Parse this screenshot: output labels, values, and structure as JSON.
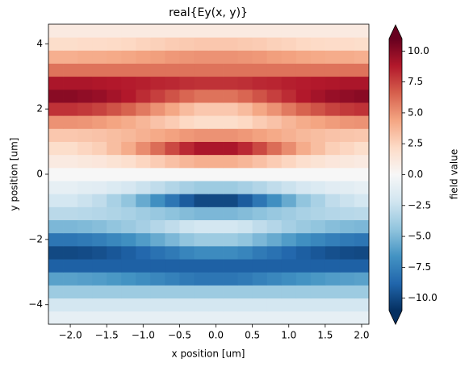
{
  "chart_data": {
    "type": "heatmap",
    "title": "real{Ey(x, y)}",
    "xlabel": "x position [um]",
    "ylabel": "y position [um]",
    "colorbar_label": "field value",
    "colormap": [
      "#053061",
      "#2166ac",
      "#4393c3",
      "#92c5de",
      "#d1e5f0",
      "#f7f7f7",
      "#fddbc7",
      "#f4a582",
      "#d6604d",
      "#b2182b",
      "#67001f"
    ],
    "clim": [
      -11,
      11
    ],
    "xlim": [
      -2.3,
      2.1
    ],
    "ylim": [
      -4.6,
      4.6
    ],
    "xticks": [
      {
        "value": -2,
        "label": "−2.0"
      },
      {
        "value": -1.5,
        "label": "−1.5"
      },
      {
        "value": -1,
        "label": "−1.0"
      },
      {
        "value": -0.5,
        "label": "−0.5"
      },
      {
        "value": 0,
        "label": "0.0"
      },
      0.5,
      {
        "value": 1,
        "label": "1.0"
      },
      1.5,
      {
        "value": 2,
        "label": "2.0"
      }
    ],
    "yticks": [
      {
        "value": -4,
        "label": "−4"
      },
      {
        "value": -2,
        "label": "−2"
      },
      0,
      2,
      4
    ],
    "cticks": [
      {
        "value": -10,
        "label": "−10.0"
      },
      {
        "value": -7.5,
        "label": "−7.5"
      },
      {
        "value": -5,
        "label": "−5.0"
      },
      {
        "value": -2.5,
        "label": "−2.5"
      },
      {
        "value": 0,
        "label": "0.0"
      },
      2.5,
      {
        "value": 5,
        "label": "5.0"
      },
      7.5,
      {
        "value": 10,
        "label": "10.0"
      }
    ],
    "x": [
      -2.2,
      -2.0,
      -1.8,
      -1.6,
      -1.4,
      -1.2,
      -1.0,
      -0.8,
      -0.6,
      -0.4,
      -0.2,
      0.0,
      0.2,
      0.4,
      0.6,
      0.8,
      1.0,
      1.2,
      1.4,
      1.6,
      1.8,
      2.0
    ],
    "y": [
      -4.4,
      -4.0,
      -3.6,
      -3.2,
      -2.8,
      -2.4,
      -2.0,
      -1.6,
      -1.2,
      -0.8,
      -0.4,
      0.0,
      0.4,
      0.8,
      1.2,
      1.6,
      2.0,
      2.4,
      2.8,
      3.2,
      3.6,
      4.0,
      4.4
    ],
    "values": [
      [
        -1,
        -1,
        -1,
        -1,
        -1,
        -1,
        -1,
        -1,
        -1,
        -1,
        -1,
        -1,
        -1,
        -1,
        -1,
        -1,
        -1,
        -1,
        -1,
        -1,
        -1,
        -1
      ],
      [
        -2,
        -2,
        -2,
        -2,
        -2,
        -2,
        -2,
        -2,
        -2,
        -2,
        -2,
        -2,
        -2,
        -2,
        -2,
        -2,
        -2,
        -2,
        -2,
        -2,
        -2,
        -2
      ],
      [
        -4,
        -4,
        -4,
        -4,
        -4,
        -4,
        -4,
        -4,
        -4,
        -4,
        -4,
        -4,
        -4,
        -4,
        -4,
        -4,
        -4,
        -4,
        -4,
        -4,
        -4,
        -4
      ],
      [
        -6,
        -6,
        -6.1,
        -6.2,
        -6.4,
        -6.6,
        -6.9,
        -7.2,
        -7.5,
        -7.8,
        -8,
        -8,
        -8,
        -7.8,
        -7.5,
        -7.2,
        -6.9,
        -6.6,
        -6.4,
        -6.2,
        -6.1,
        -6
      ],
      [
        -9,
        -9,
        -9,
        -9,
        -9,
        -9,
        -9,
        -9,
        -9,
        -9,
        -9,
        -9,
        -9,
        -9,
        -9,
        -9,
        -9,
        -9,
        -9,
        -9,
        -9,
        -9
      ],
      [
        -10,
        -10,
        -9.9,
        -9.7,
        -9.4,
        -9.1,
        -8.7,
        -8.2,
        -7.8,
        -7.3,
        -7,
        -7,
        -7,
        -7.3,
        -7.8,
        -8.2,
        -8.7,
        -9.1,
        -9.4,
        -9.7,
        -9.9,
        -10
      ],
      [
        -8,
        -8,
        -7.8,
        -7.6,
        -7.2,
        -6.8,
        -6.2,
        -5.6,
        -5,
        -4.4,
        -4,
        -4,
        -4,
        -4.4,
        -5,
        -5.6,
        -6.2,
        -6.8,
        -7.2,
        -7.6,
        -7.8,
        -8
      ],
      [
        -5,
        -5,
        -4.9,
        -4.7,
        -4.4,
        -4.1,
        -3.7,
        -3.2,
        -2.8,
        -2.3,
        -2,
        -2,
        -2,
        -2.3,
        -2.8,
        -3.2,
        -3.7,
        -4.1,
        -4.4,
        -4.7,
        -4.9,
        -5
      ],
      [
        -3,
        -3,
        -3.1,
        -3.2,
        -3.4,
        -3.6,
        -3.9,
        -4.2,
        -4.5,
        -4.8,
        -5,
        -5,
        -5,
        -4.8,
        -4.5,
        -4.2,
        -3.9,
        -3.6,
        -3.4,
        -3.2,
        -3.1,
        -3
      ],
      [
        -2,
        -2,
        -2.4,
        -2.8,
        -3.6,
        -4.4,
        -5.6,
        -6.8,
        -8,
        -9.2,
        -10,
        -10,
        -10,
        -9.2,
        -8,
        -6.8,
        -5.6,
        -4.4,
        -3.6,
        -2.8,
        -2.4,
        -2
      ],
      [
        -1,
        -1,
        -1.2,
        -1.3,
        -1.6,
        -1.9,
        -2.4,
        -2.8,
        -3.3,
        -3.7,
        -4,
        -4,
        -4,
        -3.7,
        -3.3,
        -2.8,
        -2.4,
        -1.9,
        -1.6,
        -1.3,
        -1.2,
        -1
      ],
      [
        0,
        0,
        0,
        0,
        0,
        0,
        0,
        0,
        0,
        0,
        0,
        0,
        0,
        0,
        0,
        0,
        0,
        0,
        0,
        0,
        0,
        0
      ],
      [
        1,
        1,
        1.2,
        1.3,
        1.6,
        1.9,
        2.4,
        2.8,
        3.3,
        3.7,
        4,
        4,
        4,
        3.7,
        3.3,
        2.8,
        2.4,
        1.9,
        1.6,
        1.3,
        1.2,
        1
      ],
      [
        2,
        2,
        2.4,
        2.7,
        3.4,
        4.1,
        5.2,
        6.2,
        7.3,
        8.3,
        9,
        9,
        9,
        8.3,
        7.3,
        6.2,
        5.2,
        4.1,
        3.4,
        2.7,
        2.4,
        2
      ],
      [
        3,
        3,
        3.1,
        3.2,
        3.4,
        3.6,
        3.9,
        4.2,
        4.5,
        4.8,
        5,
        5,
        5,
        4.8,
        4.5,
        4.2,
        3.9,
        3.6,
        3.4,
        3.2,
        3.1,
        3
      ],
      [
        5,
        5,
        4.9,
        4.7,
        4.4,
        4.1,
        3.7,
        3.2,
        2.8,
        2.3,
        2,
        2,
        2,
        2.3,
        2.8,
        3.2,
        3.7,
        4.1,
        4.4,
        4.7,
        4.9,
        5
      ],
      [
        8,
        8,
        7.8,
        7.5,
        7,
        6.5,
        5.8,
        5,
        4.3,
        3.5,
        3,
        3,
        3,
        3.5,
        4.3,
        5,
        5.8,
        6.5,
        7,
        7.5,
        7.8,
        8
      ],
      [
        10,
        10,
        9.8,
        9.6,
        9.2,
        8.8,
        8.2,
        7.6,
        7,
        6.4,
        6,
        6,
        6,
        6.4,
        7,
        7.6,
        8.2,
        8.8,
        9.2,
        9.6,
        9.8,
        10
      ],
      [
        9,
        9,
        9,
        8.9,
        8.8,
        8.7,
        8.6,
        8.4,
        8.3,
        8.1,
        8,
        8,
        8,
        8.1,
        8.3,
        8.4,
        8.6,
        8.7,
        8.8,
        8.9,
        9,
        9
      ],
      [
        6,
        6,
        6,
        6,
        6,
        6,
        6,
        6,
        6,
        6,
        6,
        6,
        6,
        6,
        6,
        6,
        6,
        6,
        6,
        6,
        6,
        6
      ],
      [
        4,
        4,
        4.1,
        4.1,
        4.2,
        4.3,
        4.5,
        4.6,
        4.8,
        4.9,
        5,
        5,
        5,
        4.9,
        4.8,
        4.6,
        4.5,
        4.3,
        4.2,
        4.1,
        4.1,
        4
      ],
      [
        2,
        2,
        2.1,
        2.1,
        2.2,
        2.3,
        2.5,
        2.6,
        2.8,
        2.9,
        3,
        3,
        3,
        2.9,
        2.8,
        2.6,
        2.5,
        2.3,
        2.2,
        2.1,
        2.1,
        2
      ],
      [
        1,
        1,
        1,
        1,
        1,
        1,
        1,
        1,
        1,
        1,
        1,
        1,
        1,
        1,
        1,
        1,
        1,
        1,
        1,
        1,
        1,
        1
      ]
    ]
  }
}
